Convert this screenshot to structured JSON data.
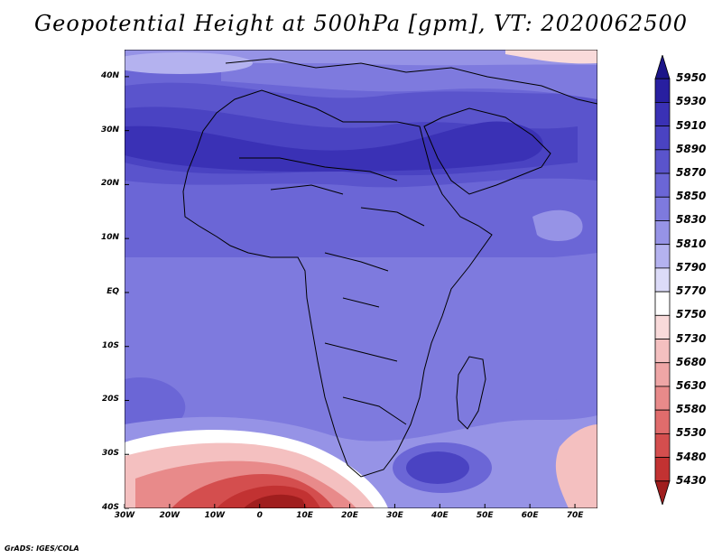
{
  "title": "Geopotential Height at 500hPa [gpm], VT: 2020062500",
  "credit": "GrADS: IGES/COLA",
  "latitude_labels": [
    "40N",
    "30N",
    "20N",
    "10N",
    "EQ",
    "10S",
    "20S",
    "30S",
    "40S"
  ],
  "latitude_values": [
    40,
    30,
    20,
    10,
    0,
    -10,
    -20,
    -30,
    -40
  ],
  "longitude_labels": [
    "30W",
    "20W",
    "10W",
    "0",
    "10E",
    "20E",
    "30E",
    "40E",
    "50E",
    "60E",
    "70E"
  ],
  "longitude_values": [
    -30,
    -20,
    -10,
    0,
    10,
    20,
    30,
    40,
    50,
    60,
    70
  ],
  "domain": {
    "lon_range": [
      -30,
      75
    ],
    "lat_range": [
      -40,
      45
    ]
  },
  "colorbar": {
    "levels": [
      {
        "value": "5950",
        "color": "#1c1589"
      },
      {
        "value": "5930",
        "color": "#281fa0"
      },
      {
        "value": "5910",
        "color": "#3a31b5"
      },
      {
        "value": "5890",
        "color": "#4a43c2"
      },
      {
        "value": "5870",
        "color": "#5a54cc"
      },
      {
        "value": "5850",
        "color": "#6b66d6"
      },
      {
        "value": "5830",
        "color": "#7e7ade"
      },
      {
        "value": "5810",
        "color": "#9693e6"
      },
      {
        "value": "5790",
        "color": "#b4b2ef"
      },
      {
        "value": "5770",
        "color": "#dcdbf8"
      },
      {
        "value": "5750",
        "color": "#ffffff"
      },
      {
        "value": "5730",
        "color": "#f9dada"
      },
      {
        "value": "5680",
        "color": "#f4c0c0"
      },
      {
        "value": "5630",
        "color": "#eea6a6"
      },
      {
        "value": "5580",
        "color": "#e88a8a"
      },
      {
        "value": "5530",
        "color": "#e06c6c"
      },
      {
        "value": "5480",
        "color": "#d44e4e"
      },
      {
        "value": "5430",
        "color": "#c23232"
      },
      {
        "value": "",
        "color": "#a01e1e"
      }
    ]
  },
  "map_regions": [
    {
      "name": "subtropical-high-north-africa",
      "value_range": "5890-5910"
    },
    {
      "name": "arabian-high",
      "value_range": "5890-5910"
    },
    {
      "name": "deep-trough-south",
      "value_range": "5430-5480"
    },
    {
      "name": "southern-high-madagascar-east",
      "value_range": "5870-5890"
    }
  ]
}
